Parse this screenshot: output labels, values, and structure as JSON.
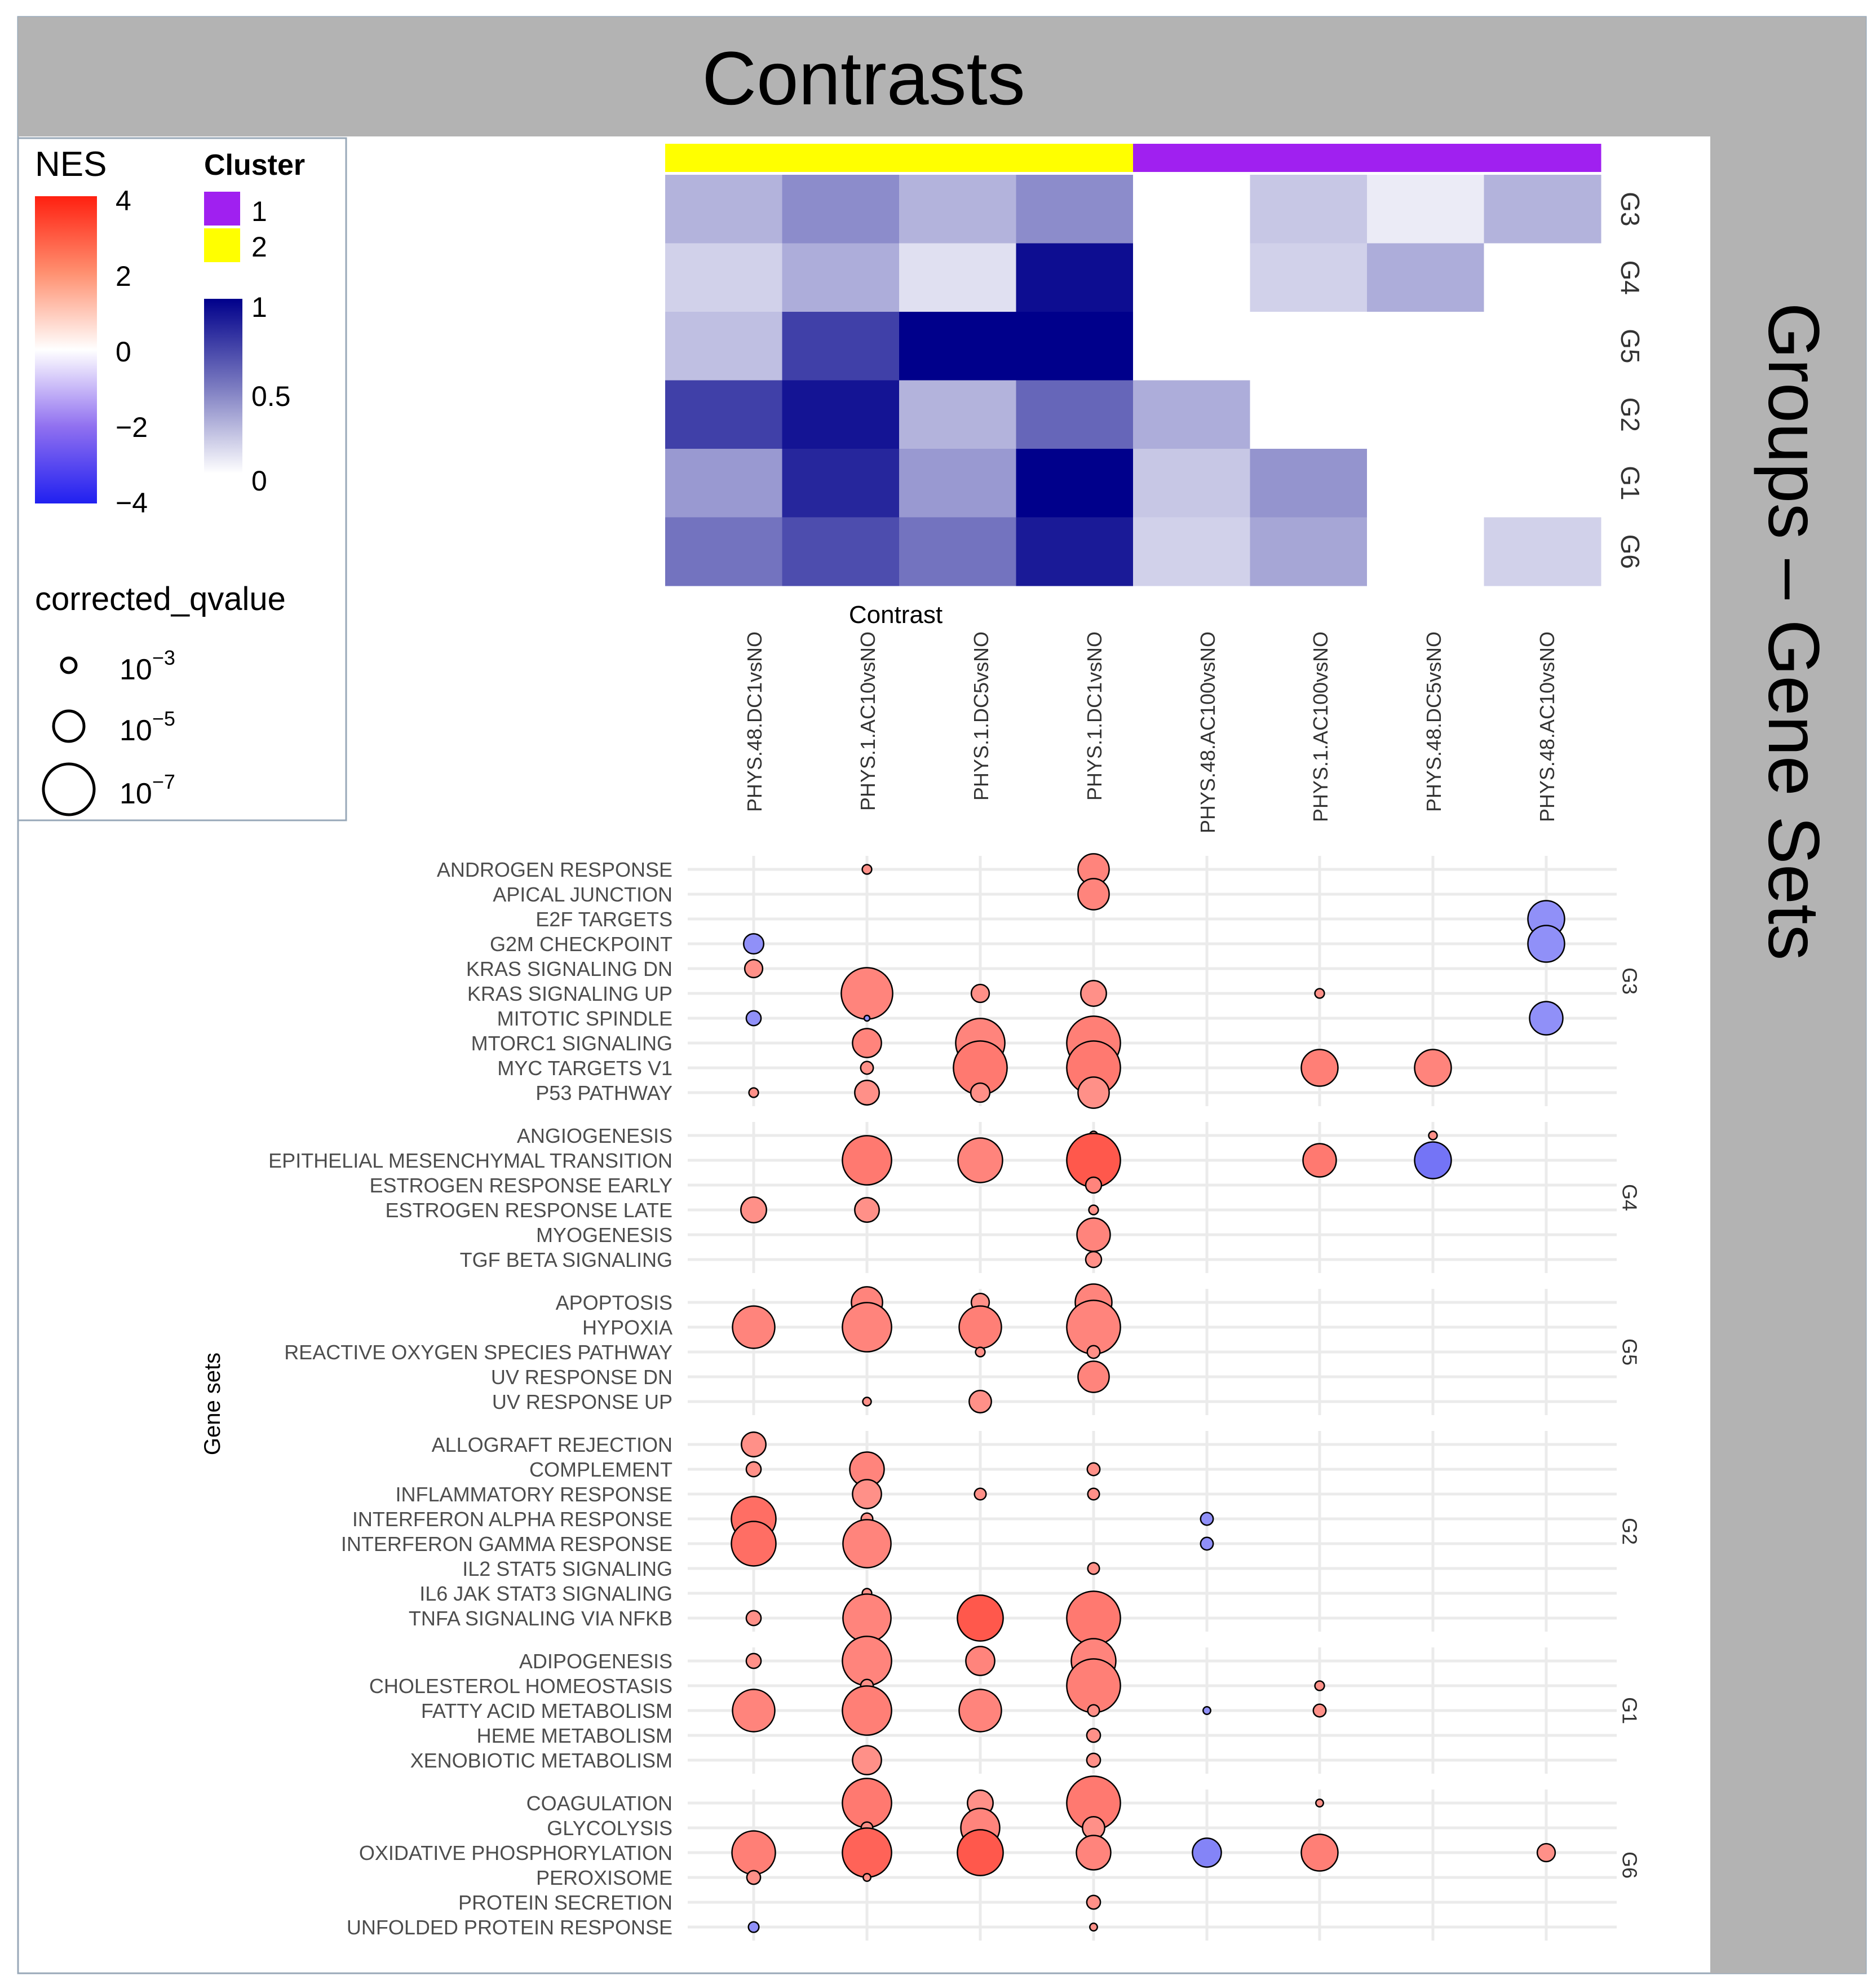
{
  "header": {
    "title": "Contrasts"
  },
  "side": {
    "title": "Groups – Gene Sets"
  },
  "legend": {
    "nes_title": "NES",
    "nes_ticks": [
      "4",
      "2",
      "0",
      "−2",
      "−4"
    ],
    "cluster_title": "Cluster",
    "cluster_labels": [
      "1",
      "2"
    ],
    "cluster_colors": [
      "#A020F0",
      "#FFFF00"
    ],
    "heat_ticks": [
      "1",
      "0.5",
      "0"
    ],
    "q_title": "corrected_qvalue",
    "q_base": [
      "10",
      "10",
      "10"
    ],
    "q_exp": [
      "−3",
      "−5",
      "−7"
    ]
  },
  "colors": {
    "neg": "#2020F0",
    "mid": "#FFFFFF",
    "pos": "#FF2010",
    "heat_high": "#00008B",
    "panel_gray": "#B3B3B3",
    "grid": "#EBEBEB"
  },
  "chart_data": {
    "type": "heatmap+bubble",
    "x_title": "Contrast",
    "y_title": "Gene sets",
    "contrasts": [
      "PHYS.48.DC1vsNO",
      "PHYS.1.AC10vsNO",
      "PHYS.1.DC5vsNO",
      "PHYS.1.DC1vsNO",
      "PHYS.48.AC100vsNO",
      "PHYS.1.AC100vsNO",
      "PHYS.48.DC5vsNO",
      "PHYS.48.AC10vsNO"
    ],
    "contrast_cluster": [
      2,
      2,
      2,
      2,
      1,
      1,
      1,
      1
    ],
    "heatmap": {
      "rows": [
        "G3",
        "G4",
        "G5",
        "G2",
        "G1",
        "G6"
      ],
      "values": [
        [
          0.3,
          0.45,
          0.3,
          0.45,
          null,
          0.22,
          0.08,
          0.3
        ],
        [
          0.18,
          0.32,
          0.12,
          0.95,
          null,
          0.18,
          0.32,
          null
        ],
        [
          0.25,
          0.75,
          1.0,
          1.0,
          null,
          null,
          null,
          null
        ],
        [
          0.75,
          0.92,
          0.3,
          0.6,
          0.32,
          null,
          null,
          null
        ],
        [
          0.4,
          0.85,
          0.4,
          1.0,
          0.22,
          0.42,
          null,
          null
        ],
        [
          0.55,
          0.7,
          0.55,
          0.9,
          0.18,
          0.35,
          null,
          0.18
        ]
      ]
    },
    "groups": [
      {
        "name": "G3",
        "sets": [
          {
            "name": "ANDROGEN RESPONSE",
            "points": [
              [
                1,
                2.0,
                3
              ],
              [
                3,
                2.2,
                5
              ]
            ]
          },
          {
            "name": "APICAL JUNCTION",
            "points": [
              [
                3,
                2.2,
                5
              ]
            ]
          },
          {
            "name": "E2F TARGETS",
            "points": [
              [
                7,
                -2.0,
                5.5
              ]
            ]
          },
          {
            "name": "G2M CHECKPOINT",
            "points": [
              [
                0,
                -2.0,
                4
              ],
              [
                7,
                -2.0,
                5.5
              ]
            ]
          },
          {
            "name": "KRAS SIGNALING DN",
            "points": [
              [
                0,
                2.0,
                3.8
              ]
            ]
          },
          {
            "name": "KRAS SIGNALING UP",
            "points": [
              [
                1,
                2.2,
                6.8
              ],
              [
                2,
                2.0,
                3.8
              ],
              [
                3,
                2.0,
                4.5
              ],
              [
                5,
                2.0,
                3
              ]
            ]
          },
          {
            "name": "MITOTIC SPINDLE",
            "points": [
              [
                0,
                -2.0,
                3.5
              ],
              [
                1,
                -2.0,
                2.6
              ],
              [
                7,
                -2.0,
                5.2
              ]
            ]
          },
          {
            "name": "MTORC1 SIGNALING",
            "points": [
              [
                1,
                2.2,
                4.8
              ],
              [
                2,
                2.2,
                6.6
              ],
              [
                3,
                2.3,
                7
              ]
            ]
          },
          {
            "name": "MYC TARGETS V1",
            "points": [
              [
                1,
                2.0,
                3.3
              ],
              [
                2,
                2.4,
                7
              ],
              [
                3,
                2.4,
                7
              ],
              [
                5,
                2.3,
                5.5
              ],
              [
                6,
                2.2,
                5.5
              ]
            ]
          },
          {
            "name": "P53 PATHWAY",
            "points": [
              [
                0,
                2.0,
                3
              ],
              [
                1,
                2.0,
                4.4
              ],
              [
                2,
                2.0,
                3.9
              ],
              [
                3,
                2.0,
                5
              ]
            ]
          }
        ]
      },
      {
        "name": "G4",
        "sets": [
          {
            "name": "ANGIOGENESIS",
            "points": [
              [
                3,
                2.0,
                2.9
              ],
              [
                6,
                2.0,
                2.9
              ]
            ]
          },
          {
            "name": "EPITHELIAL MESENCHYMAL TRANSITION",
            "points": [
              [
                1,
                2.4,
                6.6
              ],
              [
                2,
                2.2,
                6.2
              ],
              [
                3,
                3.0,
                7
              ],
              [
                5,
                2.4,
                5.2
              ],
              [
                6,
                -2.5,
                5.5
              ]
            ]
          },
          {
            "name": "ESTROGEN RESPONSE EARLY",
            "points": [
              [
                3,
                2.2,
                3.6
              ]
            ]
          },
          {
            "name": "ESTROGEN RESPONSE LATE",
            "points": [
              [
                0,
                2.0,
                4.5
              ],
              [
                1,
                2.0,
                4.4
              ],
              [
                3,
                2.0,
                3
              ]
            ]
          },
          {
            "name": "MYOGENESIS",
            "points": [
              [
                3,
                2.2,
                5.2
              ]
            ]
          },
          {
            "name": "TGF BETA SIGNALING",
            "points": [
              [
                3,
                2.0,
                3.6
              ]
            ]
          }
        ]
      },
      {
        "name": "G5",
        "sets": [
          {
            "name": "APOPTOSIS",
            "points": [
              [
                1,
                2.2,
                5
              ],
              [
                2,
                2.0,
                3.8
              ],
              [
                3,
                2.2,
                5.5
              ]
            ]
          },
          {
            "name": "HYPOXIA",
            "points": [
              [
                0,
                2.2,
                6
              ],
              [
                1,
                2.2,
                6.6
              ],
              [
                2,
                2.3,
                6
              ],
              [
                3,
                2.2,
                7
              ]
            ]
          },
          {
            "name": "REACTIVE OXYGEN SPECIES PATHWAY",
            "points": [
              [
                2,
                2.0,
                3
              ],
              [
                3,
                2.0,
                3.3
              ]
            ]
          },
          {
            "name": "UV RESPONSE DN",
            "points": [
              [
                3,
                2.2,
                5
              ]
            ]
          },
          {
            "name": "UV RESPONSE UP",
            "points": [
              [
                1,
                2.0,
                2.9
              ],
              [
                2,
                2.0,
                4.2
              ]
            ]
          }
        ]
      },
      {
        "name": "G2",
        "sets": [
          {
            "name": "ALLOGRAFT REJECTION",
            "points": [
              [
                0,
                2.0,
                4.4
              ]
            ]
          },
          {
            "name": "COMPLEMENT",
            "points": [
              [
                0,
                2.0,
                3.5
              ],
              [
                1,
                2.2,
                5.3
              ],
              [
                3,
                2.0,
                3.3
              ]
            ]
          },
          {
            "name": "INFLAMMATORY RESPONSE",
            "points": [
              [
                1,
                2.0,
                4.8
              ],
              [
                2,
                2.0,
                3.2
              ],
              [
                3,
                2.0,
                3.2
              ]
            ]
          },
          {
            "name": "INTERFERON ALPHA RESPONSE",
            "points": [
              [
                0,
                2.6,
                6.2
              ],
              [
                1,
                2.0,
                3.2
              ],
              [
                4,
                -2.0,
                3.3
              ]
            ]
          },
          {
            "name": "INTERFERON GAMMA RESPONSE",
            "points": [
              [
                0,
                2.6,
                6.2
              ],
              [
                1,
                2.2,
                6.5
              ],
              [
                4,
                -2.0,
                3.3
              ]
            ]
          },
          {
            "name": "IL2 STAT5 SIGNALING",
            "points": [
              [
                3,
                2.0,
                3.2
              ]
            ]
          },
          {
            "name": "IL6 JAK STAT3 SIGNALING",
            "points": [
              [
                1,
                2.0,
                3
              ]
            ]
          },
          {
            "name": "TNFA SIGNALING VIA NFKB",
            "points": [
              [
                0,
                2.0,
                3.5
              ],
              [
                1,
                2.2,
                6.5
              ],
              [
                2,
                3.0,
                6.3
              ],
              [
                3,
                2.4,
                7
              ]
            ]
          }
        ]
      },
      {
        "name": "G1",
        "sets": [
          {
            "name": "ADIPOGENESIS",
            "points": [
              [
                0,
                2.0,
                3.5
              ],
              [
                1,
                2.2,
                6.6
              ],
              [
                2,
                2.2,
                4.8
              ],
              [
                3,
                2.2,
                6.2
              ]
            ]
          },
          {
            "name": "CHOLESTEROL HOMEOSTASIS",
            "points": [
              [
                1,
                2.0,
                3.3
              ],
              [
                3,
                2.3,
                7
              ],
              [
                5,
                2.0,
                3
              ]
            ]
          },
          {
            "name": "FATTY ACID METABOLISM",
            "points": [
              [
                0,
                2.2,
                6
              ],
              [
                1,
                2.3,
                6.6
              ],
              [
                2,
                2.2,
                6
              ],
              [
                3,
                2.0,
                3.2
              ],
              [
                4,
                -2.0,
                2.8
              ],
              [
                5,
                2.0,
                3.3
              ]
            ]
          },
          {
            "name": "HEME METABOLISM",
            "points": [
              [
                3,
                2.0,
                3.4
              ]
            ]
          },
          {
            "name": "XENOBIOTIC METABOLISM",
            "points": [
              [
                1,
                2.0,
                4.8
              ],
              [
                3,
                2.0,
                3.4
              ]
            ]
          }
        ]
      },
      {
        "name": "G6",
        "sets": [
          {
            "name": "COAGULATION",
            "points": [
              [
                1,
                2.4,
                6.6
              ],
              [
                2,
                2.0,
                4.5
              ],
              [
                3,
                2.4,
                7
              ],
              [
                5,
                2.0,
                2.8
              ]
            ]
          },
          {
            "name": "GLYCOLYSIS",
            "points": [
              [
                1,
                2.0,
                3.2
              ],
              [
                2,
                2.2,
                5.7
              ],
              [
                3,
                2.0,
                4.2
              ]
            ]
          },
          {
            "name": "OXIDATIVE PHOSPHORYLATION",
            "points": [
              [
                0,
                2.3,
                6.1
              ],
              [
                1,
                2.8,
                6.6
              ],
              [
                2,
                3.0,
                6.3
              ],
              [
                3,
                2.2,
                5.3
              ],
              [
                4,
                -2.2,
                4.8
              ],
              [
                5,
                2.3,
                5.5
              ],
              [
                7,
                2.0,
                3.8
              ]
            ]
          },
          {
            "name": "PEROXISOME",
            "points": [
              [
                0,
                2.0,
                3.4
              ],
              [
                1,
                2.0,
                2.8
              ]
            ]
          },
          {
            "name": "PROTEIN SECRETION",
            "points": [
              [
                3,
                2.0,
                3.4
              ]
            ]
          },
          {
            "name": "UNFOLDED PROTEIN RESPONSE",
            "points": [
              [
                0,
                -2.0,
                3.1
              ],
              [
                3,
                2.0,
                2.8
              ]
            ]
          }
        ]
      }
    ]
  }
}
